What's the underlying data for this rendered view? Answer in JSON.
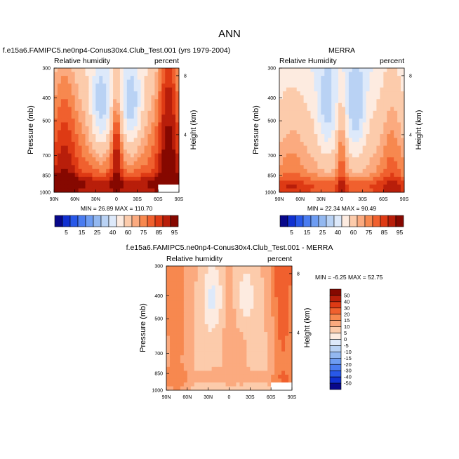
{
  "figure": {
    "title": "ANN"
  },
  "chart_data": [
    {
      "type": "heatmap",
      "panel": "model",
      "title": "f.e15a6.FAMIPC5.ne0np4-Conus30x4.Club_Test.001 (yrs 1979-2004)",
      "left_label": "Relative humidity",
      "right_label": "percent",
      "ylabel": "Pressure (mb)",
      "ylabel_right": "Height (km)",
      "x_ticks": [
        "90N",
        "60N",
        "30N",
        "0",
        "30S",
        "60S",
        "90S"
      ],
      "x_range": [
        90,
        -90
      ],
      "y_ticks": [
        300,
        400,
        500,
        700,
        850,
        1000
      ],
      "y_range": [
        300,
        1000
      ],
      "y_scale": "log-pressure",
      "height_ticks": [
        8,
        4
      ],
      "stats": "MIN = 26.89  MAX = 110.70",
      "min": 26.89,
      "max": 110.7,
      "colorbar": {
        "orientation": "horizontal",
        "levels": [
          5,
          10,
          15,
          20,
          25,
          30,
          40,
          50,
          60,
          70,
          75,
          80,
          85,
          90,
          95
        ],
        "labels": [
          "5",
          "15",
          "25",
          "40",
          "60",
          "75",
          "85",
          "95"
        ],
        "colors": [
          "#08088a",
          "#1030d0",
          "#2858e8",
          "#4a7cf0",
          "#6d9cf2",
          "#93b8f0",
          "#b9d2f4",
          "#dde9fa",
          "#fdebe0",
          "#fccbab",
          "#fbaa7f",
          "#f7884f",
          "#f0602e",
          "#de3a14",
          "#b81e0a",
          "#860800"
        ]
      }
    },
    {
      "type": "heatmap",
      "panel": "obs",
      "title": "MERRA",
      "left_label": "Relative Humidity",
      "right_label": "percent",
      "ylabel": "Pressure (mb)",
      "ylabel_right": "Height (km)",
      "x_ticks": [
        "90N",
        "60N",
        "30N",
        "0",
        "30S",
        "60S",
        "90S"
      ],
      "x_range": [
        90,
        -90
      ],
      "y_ticks": [
        300,
        400,
        500,
        700,
        850,
        1000
      ],
      "y_range": [
        300,
        1000
      ],
      "y_scale": "log-pressure",
      "height_ticks": [
        8,
        4
      ],
      "stats": "MIN = 22.34  MAX = 90.49",
      "min": 22.34,
      "max": 90.49,
      "colorbar": {
        "orientation": "horizontal",
        "levels": [
          5,
          10,
          15,
          20,
          25,
          30,
          40,
          50,
          60,
          70,
          75,
          80,
          85,
          90,
          95
        ],
        "labels": [
          "5",
          "15",
          "25",
          "40",
          "60",
          "75",
          "85",
          "95"
        ],
        "colors": [
          "#08088a",
          "#1030d0",
          "#2858e8",
          "#4a7cf0",
          "#6d9cf2",
          "#93b8f0",
          "#b9d2f4",
          "#dde9fa",
          "#fdebe0",
          "#fccbab",
          "#fbaa7f",
          "#f7884f",
          "#f0602e",
          "#de3a14",
          "#b81e0a",
          "#860800"
        ]
      }
    },
    {
      "type": "heatmap",
      "panel": "diff",
      "title": "f.e15a6.FAMIPC5.ne0np4-Conus30x4.Club_Test.001 - MERRA",
      "left_label": "Relative humidity",
      "right_label": "percent",
      "ylabel": "Pressure (mb)",
      "ylabel_right": "Height (km)",
      "x_ticks": [
        "90N",
        "60N",
        "30N",
        "0",
        "30S",
        "60S",
        "90S"
      ],
      "x_range": [
        90,
        -90
      ],
      "y_ticks": [
        300,
        400,
        500,
        700,
        850,
        1000
      ],
      "y_range": [
        300,
        1000
      ],
      "y_scale": "log-pressure",
      "height_ticks": [
        8,
        4
      ],
      "stats": "MIN = -6.25  MAX = 52.75",
      "min": -6.25,
      "max": 52.75,
      "colorbar": {
        "orientation": "vertical",
        "levels": [
          -50,
          -40,
          -30,
          -20,
          -15,
          -10,
          -5,
          0,
          5,
          10,
          15,
          20,
          30,
          40,
          50
        ],
        "labels": [
          "50",
          "40",
          "30",
          "20",
          "15",
          "10",
          "5",
          "0",
          "-5",
          "-10",
          "-15",
          "-20",
          "-30",
          "-40",
          "-50"
        ],
        "colors": [
          "#08088a",
          "#1030d0",
          "#2858e8",
          "#4a7cf0",
          "#6d9cf2",
          "#93b8f0",
          "#b9d2f4",
          "#dde9fa",
          "#fdebe0",
          "#fccbab",
          "#fbaa7f",
          "#f7884f",
          "#f0602e",
          "#de3a14",
          "#b81e0a",
          "#860800"
        ]
      }
    }
  ]
}
